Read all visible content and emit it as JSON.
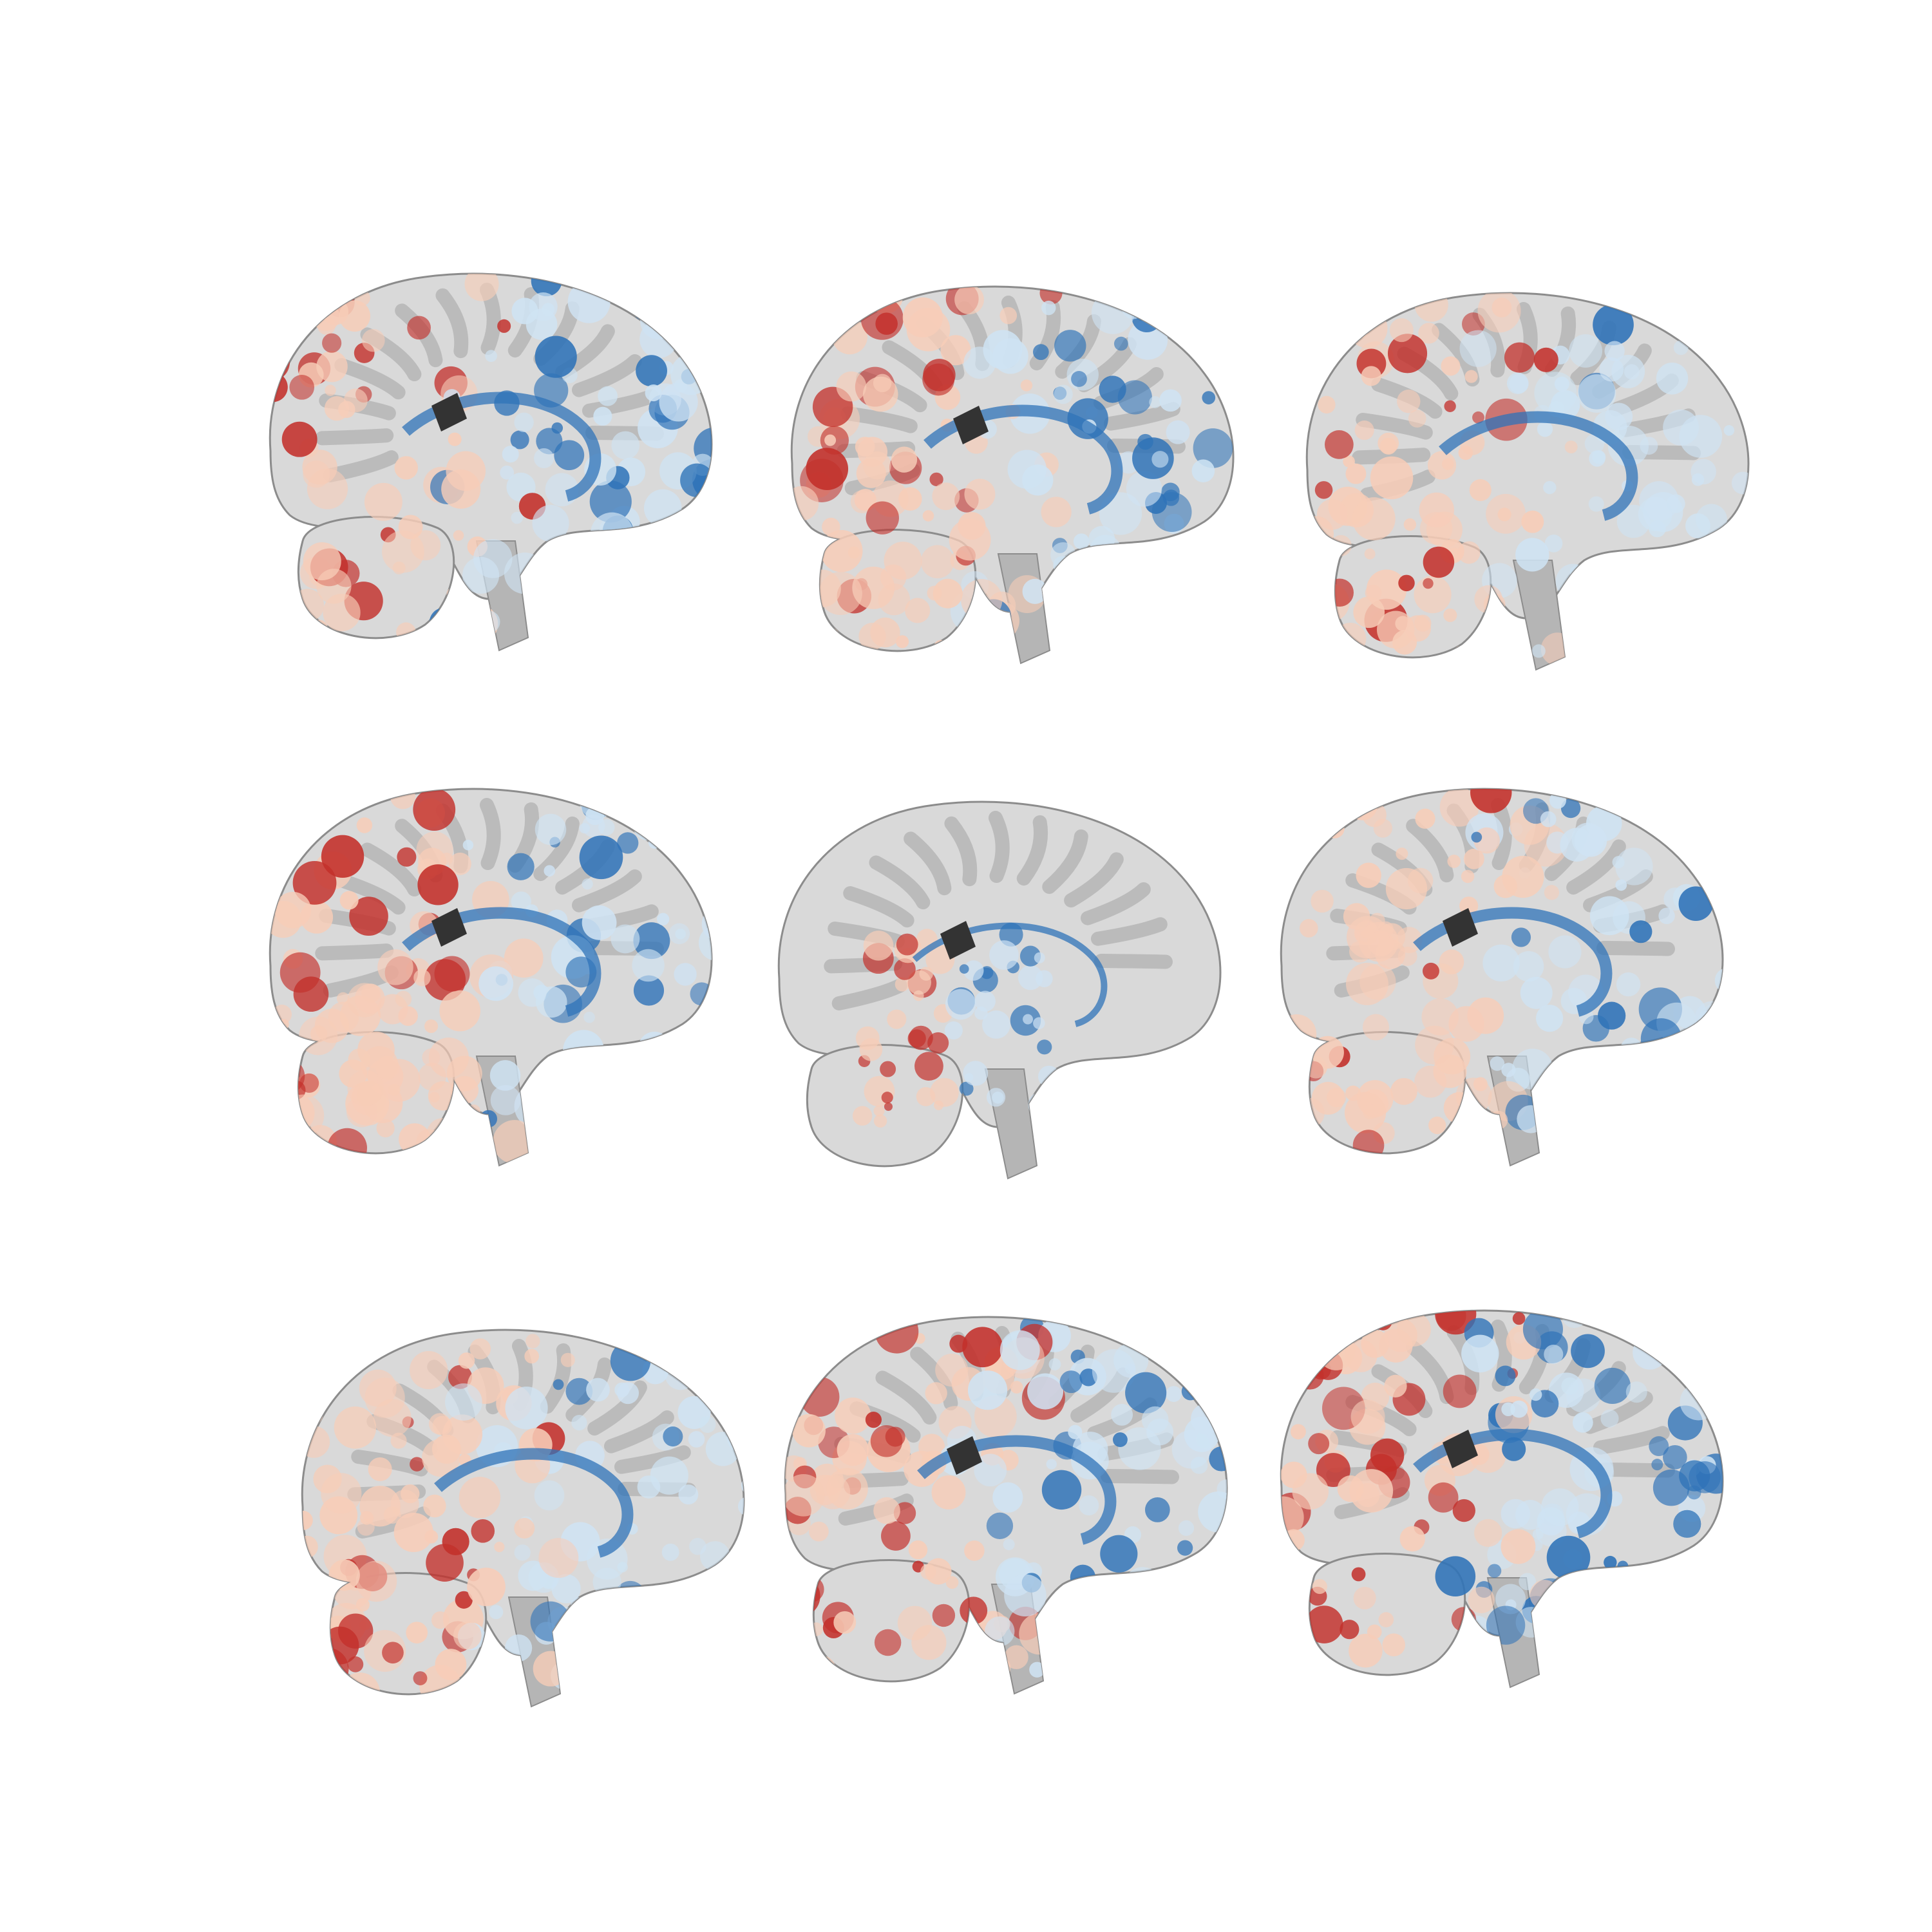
{
  "figure": {
    "description_hidden": "",
    "layout": "3x3 grid",
    "background": "#ffffff"
  },
  "colormap": {
    "negative_strong": "#2f73b8",
    "negative_weak": "#cfe3f3",
    "neutral": "#f4f4f4",
    "positive_weak": "#f7cdb8",
    "positive_strong": "#c3302b",
    "anatomy_light": "#d9d9d9",
    "anatomy_mid": "#b5b5b5",
    "anatomy_dark": "#8c8c8c",
    "ventricle": "#333333"
  },
  "slices": [
    {
      "id": "r1c1",
      "facing": "right",
      "red_weight": 0.7,
      "blue_weight": 0.6,
      "ventricle": true
    },
    {
      "id": "r1c2",
      "facing": "right",
      "red_weight": 0.65,
      "blue_weight": 0.55,
      "ventricle": true
    },
    {
      "id": "r1c3",
      "facing": "right",
      "red_weight": 0.45,
      "blue_weight": 0.25,
      "ventricle": false
    },
    {
      "id": "r2c1",
      "facing": "right",
      "red_weight": 0.35,
      "blue_weight": 0.6,
      "ventricle": true
    },
    {
      "id": "r2c2",
      "facing": "right",
      "red_weight": 0.3,
      "blue_weight": 0.5,
      "ventricle": true,
      "midline": true
    },
    {
      "id": "r2c3",
      "facing": "right",
      "red_weight": 0.35,
      "blue_weight": 0.6,
      "ventricle": true
    },
    {
      "id": "r3c1",
      "facing": "right",
      "red_weight": 0.45,
      "blue_weight": 0.25,
      "ventricle": false
    },
    {
      "id": "r3c2",
      "facing": "right",
      "red_weight": 0.65,
      "blue_weight": 0.55,
      "ventricle": true
    },
    {
      "id": "r3c3",
      "facing": "right",
      "red_weight": 0.7,
      "blue_weight": 0.7,
      "ventricle": true
    }
  ]
}
